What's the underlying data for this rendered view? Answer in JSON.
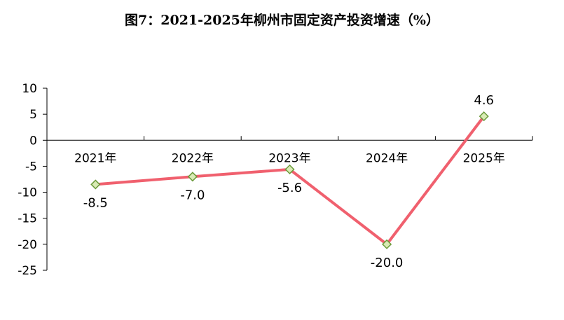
{
  "chart_data": {
    "type": "line",
    "title": "图7：2021-2025年柳州市固定资产投资增速（%）",
    "categories": [
      "2021年",
      "2022年",
      "2023年",
      "2024年",
      "2025年"
    ],
    "series": [
      {
        "values": [
          -8.5,
          -7.0,
          -5.6,
          -20.0,
          4.6
        ],
        "labels": [
          "-8.5",
          "-7.0",
          "-5.6",
          "-20.0",
          "4.6"
        ]
      }
    ],
    "ylim": [
      -25,
      10
    ],
    "yticks": [
      10,
      5,
      0,
      -5,
      -10,
      -15,
      -20,
      -25
    ],
    "grid": false,
    "legend": "none",
    "colors": {
      "line": "#f0606e",
      "marker_fill": "#d9ebb5",
      "marker_stroke": "#6a9a3a",
      "axis": "#000000"
    }
  }
}
